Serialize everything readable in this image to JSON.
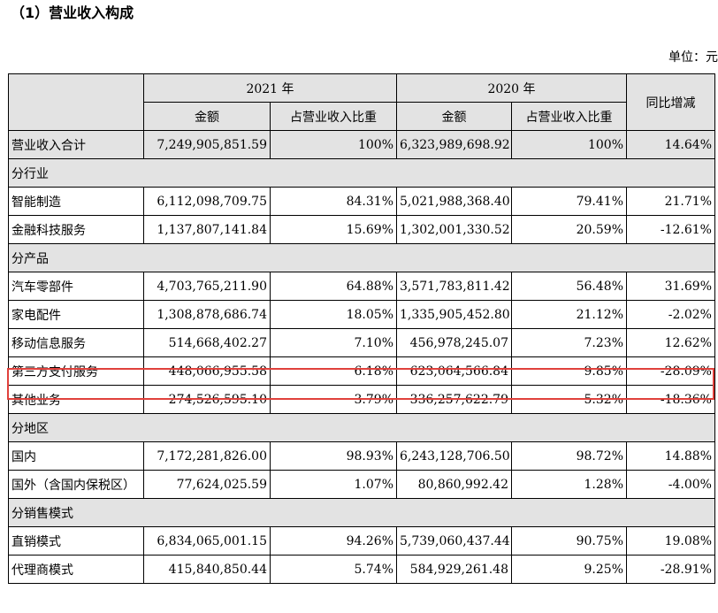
{
  "title": "（1）营业收入构成",
  "unit": "单位：元",
  "table": {
    "header": {
      "year_2021": "2021 年",
      "year_2020": "2020 年",
      "yoy": "同比增减",
      "amount": "金额",
      "ratio": "占营业收入比重"
    },
    "total": {
      "label": "营业收入合计",
      "amount_2021": "7,249,905,851.59",
      "ratio_2021": "100%",
      "amount_2020": "6,323,989,698.92",
      "ratio_2020": "100%",
      "yoy": "14.64%"
    },
    "sections": [
      {
        "label": "分行业",
        "rows": [
          {
            "label": "智能制造",
            "amount_2021": "6,112,098,709.75",
            "ratio_2021": "84.31%",
            "amount_2020": "5,021,988,368.40",
            "ratio_2020": "79.41%",
            "yoy": "21.71%"
          },
          {
            "label": "金融科技服务",
            "amount_2021": "1,137,807,141.84",
            "ratio_2021": "15.69%",
            "amount_2020": "1,302,001,330.52",
            "ratio_2020": "20.59%",
            "yoy": "-12.61%"
          }
        ]
      },
      {
        "label": "分产品",
        "rows": [
          {
            "label": "汽车零部件",
            "amount_2021": "4,703,765,211.90",
            "ratio_2021": "64.88%",
            "amount_2020": "3,571,783,811.42",
            "ratio_2020": "56.48%",
            "yoy": "31.69%"
          },
          {
            "label": "家电配件",
            "amount_2021": "1,308,878,686.74",
            "ratio_2021": "18.05%",
            "amount_2020": "1,335,905,452.80",
            "ratio_2020": "21.12%",
            "yoy": "-2.02%"
          },
          {
            "label": "移动信息服务",
            "amount_2021": "514,668,402.27",
            "ratio_2021": "7.10%",
            "amount_2020": "456,978,245.07",
            "ratio_2020": "7.23%",
            "yoy": "12.62%"
          },
          {
            "label": "第三方支付服务",
            "amount_2021": "448,066,955.58",
            "ratio_2021": "6.18%",
            "amount_2020": "623,064,566.84",
            "ratio_2020": "9.85%",
            "yoy": "-28.09%"
          },
          {
            "label": "其他业务",
            "amount_2021": "274,526,595.10",
            "ratio_2021": "3.79%",
            "amount_2020": "336,257,622.79",
            "ratio_2020": "5.32%",
            "yoy": "-18.36%"
          }
        ]
      },
      {
        "label": "分地区",
        "rows": [
          {
            "label": "国内",
            "amount_2021": "7,172,281,826.00",
            "ratio_2021": "98.93%",
            "amount_2020": "6,243,128,706.50",
            "ratio_2020": "98.72%",
            "yoy": "14.88%"
          },
          {
            "label": "国外（含国内保税区）",
            "amount_2021": "77,624,025.59",
            "ratio_2021": "1.07%",
            "amount_2020": "80,860,992.42",
            "ratio_2020": "1.28%",
            "yoy": "-4.00%"
          }
        ]
      },
      {
        "label": "分销售模式",
        "rows": [
          {
            "label": "直销模式",
            "amount_2021": "6,834,065,001.15",
            "ratio_2021": "94.26%",
            "amount_2020": "5,739,060,437.44",
            "ratio_2020": "90.75%",
            "yoy": "19.08%"
          },
          {
            "label": "代理商模式",
            "amount_2021": "415,840,850.44",
            "ratio_2021": "5.74%",
            "amount_2020": "584,929,261.48",
            "ratio_2020": "9.25%",
            "yoy": "-28.91%"
          }
        ]
      }
    ]
  },
  "colors": {
    "header_bg": "#e3e3e3",
    "highlight": "#e0413c"
  }
}
